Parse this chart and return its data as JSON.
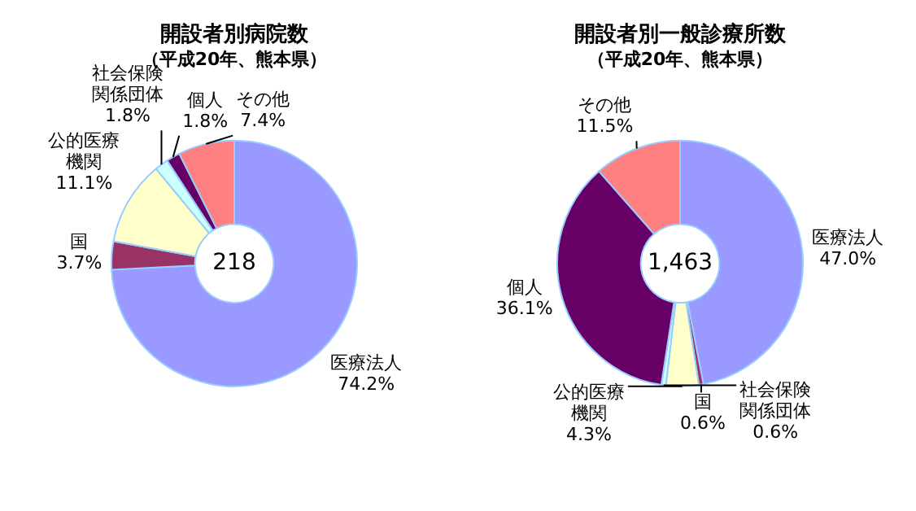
{
  "chart_data": [
    {
      "type": "donut",
      "title": "開設者別病院数",
      "subtitle": "（平成20年、熊本県）",
      "categories": [
        "医療法人",
        "国",
        "公的医療機関",
        "社会保険関係団体",
        "個人",
        "その他"
      ],
      "values": [
        74.2,
        3.7,
        11.1,
        1.8,
        1.8,
        7.4
      ],
      "value_labels": [
        "74.2%",
        "3.7%",
        "11.1%",
        "1.8%",
        "1.8%",
        "7.4%"
      ],
      "colors": [
        "#9999ff",
        "#993366",
        "#ffffcc",
        "#ccffff",
        "#660066",
        "#ff8080"
      ],
      "annotations": [
        "218"
      ],
      "legend": false
    },
    {
      "type": "donut",
      "title": "開設者別一般診療所数",
      "subtitle": "（平成20年、熊本県）",
      "categories": [
        "医療法人",
        "国",
        "公的医療機関",
        "社会保険関係団体",
        "個人",
        "その他"
      ],
      "values": [
        47.0,
        0.6,
        4.3,
        0.6,
        36.1,
        11.5
      ],
      "value_labels": [
        "47.0%",
        "0.6%",
        "4.3%",
        "0.6%",
        "36.1%",
        "11.5%"
      ],
      "colors": [
        "#9999ff",
        "#993366",
        "#ffffcc",
        "#ccffff",
        "#660066",
        "#ff8080"
      ],
      "annotations": [
        "1,463"
      ],
      "legend": false
    }
  ]
}
